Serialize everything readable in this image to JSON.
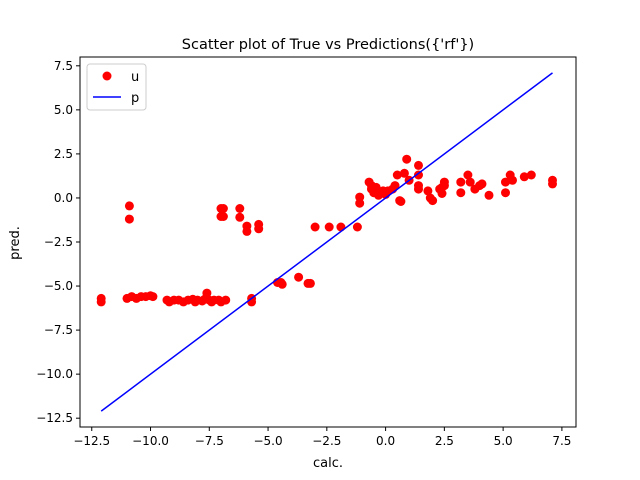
{
  "chart_data": {
    "type": "scatter",
    "title": "Scatter plot of True vs Predictions({'rf'})",
    "xlabel": "calc.",
    "ylabel": "pred.",
    "xlim": [
      -13.0,
      8.1
    ],
    "ylim": [
      -13.0,
      8.0
    ],
    "xticks": [
      -12.5,
      -10.0,
      -7.5,
      -5.0,
      -2.5,
      0.0,
      2.5,
      5.0,
      7.5
    ],
    "yticks": [
      -12.5,
      -10.0,
      -7.5,
      -5.0,
      -2.5,
      0.0,
      2.5,
      5.0,
      7.5
    ],
    "xtick_labels": [
      "−12.5",
      "−10.0",
      "−7.5",
      "−5.0",
      "−2.5",
      "0.0",
      "2.5",
      "5.0",
      "7.5"
    ],
    "ytick_labels": [
      "−12.5",
      "−10.0",
      "−7.5",
      "−5.0",
      "−2.5",
      "0.0",
      "2.5",
      "5.0",
      "7.5"
    ],
    "grid": false,
    "legend": "upper-left",
    "series": [
      {
        "name": "u",
        "kind": "scatter",
        "color": "#ff0000",
        "points": [
          [
            -12.1,
            -5.7
          ],
          [
            -12.1,
            -5.9
          ],
          [
            -10.9,
            -0.45
          ],
          [
            -10.9,
            -1.2
          ],
          [
            -11.0,
            -5.7
          ],
          [
            -10.8,
            -5.6
          ],
          [
            -10.6,
            -5.7
          ],
          [
            -10.4,
            -5.6
          ],
          [
            -10.2,
            -5.6
          ],
          [
            -10.0,
            -5.55
          ],
          [
            -9.9,
            -5.6
          ],
          [
            -9.3,
            -5.8
          ],
          [
            -9.2,
            -5.9
          ],
          [
            -9.0,
            -5.8
          ],
          [
            -8.8,
            -5.8
          ],
          [
            -8.6,
            -5.9
          ],
          [
            -8.4,
            -5.8
          ],
          [
            -8.2,
            -5.75
          ],
          [
            -8.1,
            -5.9
          ],
          [
            -8.0,
            -5.8
          ],
          [
            -7.8,
            -5.85
          ],
          [
            -7.7,
            -5.75
          ],
          [
            -7.6,
            -5.4
          ],
          [
            -7.5,
            -5.8
          ],
          [
            -7.4,
            -5.9
          ],
          [
            -7.3,
            -5.8
          ],
          [
            -7.1,
            -5.8
          ],
          [
            -7.0,
            -5.9
          ],
          [
            -6.8,
            -5.8
          ],
          [
            -7.0,
            -0.6
          ],
          [
            -6.9,
            -0.6
          ],
          [
            -7.0,
            -1.05
          ],
          [
            -6.9,
            -1.05
          ],
          [
            -6.2,
            -0.6
          ],
          [
            -6.2,
            -1.1
          ],
          [
            -5.9,
            -1.6
          ],
          [
            -5.9,
            -1.9
          ],
          [
            -5.4,
            -1.5
          ],
          [
            -5.4,
            -1.75
          ],
          [
            -5.7,
            -5.7
          ],
          [
            -5.7,
            -5.9
          ],
          [
            -4.6,
            -4.8
          ],
          [
            -4.4,
            -4.9
          ],
          [
            -4.45,
            -4.8
          ],
          [
            -3.7,
            -4.5
          ],
          [
            -3.3,
            -4.85
          ],
          [
            -3.2,
            -4.85
          ],
          [
            -3.0,
            -1.65
          ],
          [
            -2.4,
            -1.65
          ],
          [
            -1.9,
            -1.65
          ],
          [
            -1.2,
            -1.65
          ],
          [
            -1.1,
            0.05
          ],
          [
            -1.1,
            -0.3
          ],
          [
            -0.7,
            0.9
          ],
          [
            -0.6,
            0.7
          ],
          [
            -0.6,
            0.5
          ],
          [
            -0.5,
            0.3
          ],
          [
            -0.4,
            0.6
          ],
          [
            -0.3,
            0.15
          ],
          [
            -0.2,
            0.3
          ],
          [
            -0.1,
            0.4
          ],
          [
            0.0,
            0.2
          ],
          [
            0.1,
            0.4
          ],
          [
            0.3,
            0.5
          ],
          [
            0.4,
            0.7
          ],
          [
            0.5,
            1.3
          ],
          [
            0.6,
            -0.15
          ],
          [
            0.65,
            -0.2
          ],
          [
            0.8,
            1.4
          ],
          [
            0.9,
            2.2
          ],
          [
            1.0,
            1.0
          ],
          [
            1.4,
            1.85
          ],
          [
            1.4,
            1.3
          ],
          [
            1.4,
            0.7
          ],
          [
            1.4,
            0.5
          ],
          [
            1.8,
            0.4
          ],
          [
            1.9,
            0.0
          ],
          [
            2.0,
            -0.15
          ],
          [
            2.3,
            0.5
          ],
          [
            2.4,
            0.25
          ],
          [
            2.4,
            0.6
          ],
          [
            2.5,
            0.9
          ],
          [
            2.5,
            0.7
          ],
          [
            3.2,
            0.9
          ],
          [
            3.2,
            0.3
          ],
          [
            3.5,
            1.3
          ],
          [
            3.6,
            0.9
          ],
          [
            3.8,
            0.5
          ],
          [
            4.0,
            0.7
          ],
          [
            4.1,
            0.8
          ],
          [
            4.4,
            0.15
          ],
          [
            5.1,
            0.3
          ],
          [
            5.1,
            0.9
          ],
          [
            5.3,
            1.3
          ],
          [
            5.4,
            1.0
          ],
          [
            5.9,
            1.2
          ],
          [
            6.2,
            1.3
          ],
          [
            7.1,
            1.0
          ],
          [
            7.1,
            0.8
          ]
        ]
      },
      {
        "name": "p",
        "kind": "line",
        "color": "#0000ff",
        "points": [
          [
            -12.1,
            -12.1
          ],
          [
            7.1,
            7.1
          ]
        ]
      }
    ]
  }
}
